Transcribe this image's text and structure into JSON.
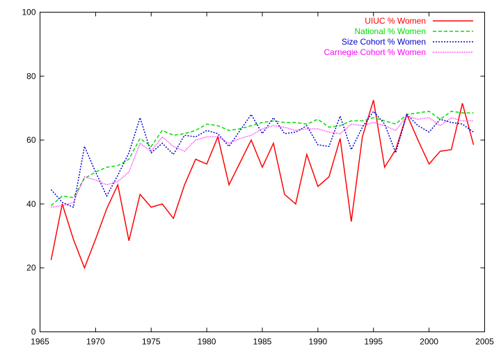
{
  "chart_data": {
    "type": "line",
    "title": "",
    "xlabel": "",
    "ylabel": "",
    "xlim": [
      1965,
      2005
    ],
    "ylim": [
      0,
      100
    ],
    "xticks": [
      1965,
      1970,
      1975,
      1980,
      1985,
      1990,
      1995,
      2000,
      2005
    ],
    "yticks": [
      0,
      20,
      40,
      60,
      80,
      100
    ],
    "grid": false,
    "legend_position": "top-right",
    "x": [
      1966,
      1967,
      1968,
      1969,
      1970,
      1971,
      1972,
      1973,
      1974,
      1975,
      1976,
      1977,
      1978,
      1979,
      1980,
      1981,
      1982,
      1983,
      1984,
      1985,
      1986,
      1987,
      1988,
      1989,
      1990,
      1991,
      1992,
      1993,
      1994,
      1995,
      1996,
      1997,
      1998,
      1999,
      2000,
      2001,
      2002,
      2003,
      2004
    ],
    "series": [
      {
        "name": "UIUC % Women",
        "color": "#ff0000",
        "dash": "solid",
        "values": [
          22.5,
          40,
          29,
          20,
          29,
          38.5,
          46,
          28.5,
          43,
          39,
          40,
          35.5,
          46,
          54,
          52.5,
          61,
          46,
          53,
          60,
          51.5,
          59,
          43,
          40,
          55.5,
          45.5,
          48.5,
          60.5,
          34.5,
          61,
          72.5,
          51.5,
          57,
          68,
          60,
          52.5,
          56.5,
          57,
          71.5,
          58.5
        ]
      },
      {
        "name": "National % Women",
        "color": "#00dd00",
        "dash": "dashed",
        "values": [
          39.5,
          42.5,
          42,
          48,
          50,
          51.5,
          52,
          54,
          60.5,
          58,
          63,
          61.5,
          62,
          63,
          65,
          64.5,
          63,
          63.5,
          64.5,
          65.5,
          66,
          65.5,
          65.5,
          65,
          66.5,
          64,
          64.5,
          66,
          66,
          67,
          66,
          65,
          68,
          68.5,
          69,
          66.5,
          69,
          68.5,
          68.5
        ]
      },
      {
        "name": "Size Cohort % Women",
        "color": "#0000cc",
        "dash": "dotted",
        "values": [
          44.5,
          40.5,
          39,
          58,
          50,
          42.5,
          49,
          56,
          67,
          56,
          59,
          55.5,
          61.5,
          61,
          63,
          62,
          58,
          63,
          68,
          62,
          67,
          62,
          62.5,
          64.5,
          58.5,
          58,
          67.5,
          57,
          64,
          69,
          65,
          56,
          68,
          64.5,
          62.5,
          66.5,
          65.5,
          65,
          62.5
        ]
      },
      {
        "name": "Carnegie Cohort % Women",
        "color": "#ff00ff",
        "dash": "finedot",
        "values": [
          39,
          39.5,
          40.5,
          48.5,
          47.5,
          46,
          47,
          50,
          59,
          56.5,
          61,
          58,
          56.5,
          60,
          61,
          61,
          59,
          60.5,
          61.5,
          63.5,
          64.5,
          64,
          63,
          63.5,
          63.5,
          62.5,
          62,
          65,
          64.5,
          65.5,
          64.5,
          63,
          67.5,
          66.5,
          67,
          64.5,
          67,
          66,
          66
        ]
      }
    ]
  }
}
